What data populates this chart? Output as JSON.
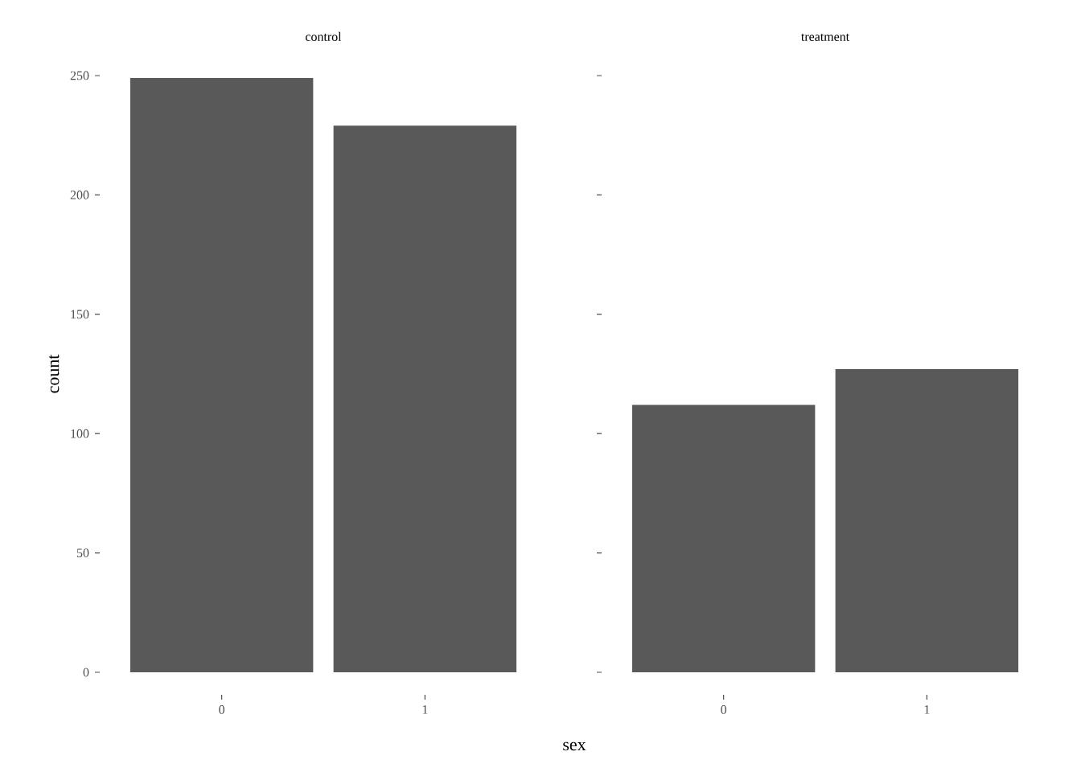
{
  "chart_data": [
    {
      "type": "bar",
      "title": "control",
      "xlabel": "sex",
      "ylabel": "count",
      "categories": [
        "0",
        "1"
      ],
      "values": [
        249,
        229
      ],
      "color": "#595959",
      "ylim": [
        0,
        250
      ],
      "yticks": [
        0,
        50,
        100,
        150,
        200,
        250
      ]
    },
    {
      "type": "bar",
      "title": "treatment",
      "categories": [
        "0",
        "1"
      ],
      "values": [
        112,
        127
      ],
      "color": "#595959",
      "ylim": [
        0,
        250
      ],
      "yticks": [
        0,
        50,
        100,
        150,
        200,
        250
      ],
      "tick_labels": "x"
    }
  ]
}
